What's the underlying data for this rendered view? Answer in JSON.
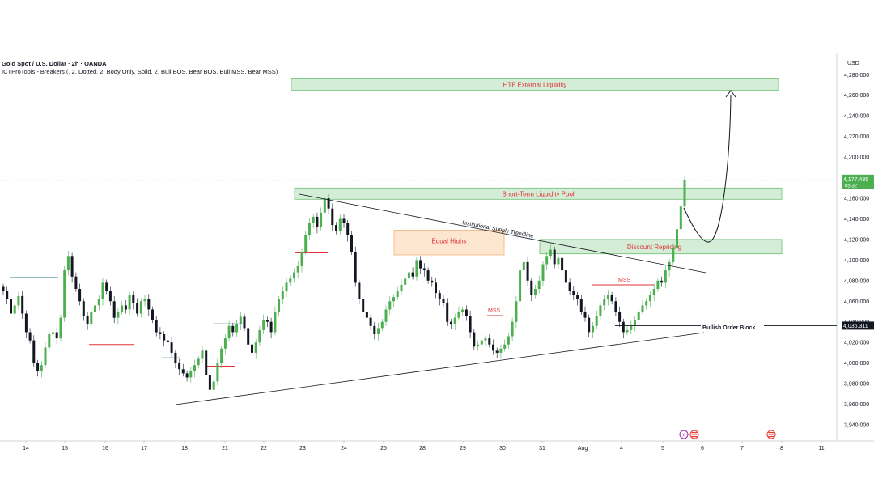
{
  "header": {
    "title": "Gold Spot / U.S. Dollar · 2h · OANDA",
    "indicator": "ICTProTools - Breakers (, 2, Dotted, 2, Body Only, Solid, 2, Bull BOS, Bear BOS, Bull MSS, Bear MSS)"
  },
  "colors": {
    "bull": "#4caf50",
    "bear": "#131722",
    "zone_fill": "#d4edd6",
    "zone_border": "#6fbf73",
    "zone_label": "#e0333a",
    "equal_highs_fill": "#fde6cf",
    "equal_highs_border": "#f0b27a",
    "price_badge": "#4caf50"
  },
  "chart_data": {
    "type": "candlestick",
    "symbol": "Gold Spot / U.S. Dollar",
    "timeframe": "2h",
    "currency_label": "USD",
    "ylim": [
      3930,
      4295
    ],
    "y_ticks": [
      3940,
      3960,
      3980,
      4000,
      4020,
      4040,
      4060,
      4080,
      4100,
      4120,
      4140,
      4160,
      4200,
      4220,
      4240,
      4260,
      4280
    ],
    "y_tick_labels": [
      "3,940.000",
      "3,960.000",
      "3,980.000",
      "4,000.000",
      "4,020.000",
      "4,040.000",
      "4,060.000",
      "4,080.000",
      "4,100.000",
      "4,120.000",
      "4,140.000",
      "4,160.000",
      "4,200.000",
      "4,220.000",
      "4,240.000",
      "4,260.000",
      "4,280.000"
    ],
    "x_tick_labels": [
      "14",
      "15",
      "16",
      "17",
      "18",
      "21",
      "22",
      "23",
      "24",
      "25",
      "28",
      "29",
      "30",
      "31",
      "Aug",
      "4",
      "5",
      "6",
      "7",
      "8",
      "11"
    ],
    "current_price": "4,177.435",
    "countdown": "05:32",
    "marked_price": "4,036.311",
    "closes": [
      4070,
      4062,
      4048,
      4056,
      4065,
      4048,
      4030,
      4022,
      4000,
      3992,
      3998,
      4015,
      4028,
      4030,
      4024,
      4044,
      4090,
      4104,
      4084,
      4072,
      4060,
      4046,
      4038,
      4050,
      4056,
      4062,
      4078,
      4070,
      4060,
      4044,
      4050,
      4056,
      4052,
      4066,
      4058,
      4048,
      4060,
      4062,
      4052,
      4042,
      4030,
      4028,
      4022,
      4020,
      4010,
      4000,
      3994,
      3990,
      3986,
      3992,
      3998,
      4004,
      4012,
      3988,
      3974,
      3982,
      4000,
      4014,
      4024,
      4036,
      4030,
      4038,
      4045,
      4034,
      4018,
      4010,
      4020,
      4032,
      4042,
      4040,
      4030,
      4050,
      4062,
      4070,
      4078,
      4082,
      4088,
      4094,
      4108,
      4124,
      4136,
      4142,
      4132,
      4146,
      4160,
      4150,
      4134,
      4128,
      4140,
      4136,
      4124,
      4108,
      4078,
      4062,
      4050,
      4044,
      4036,
      4028,
      4034,
      4040,
      4052,
      4060,
      4064,
      4070,
      4076,
      4082,
      4088,
      4084,
      4100,
      4092,
      4090,
      4080,
      4078,
      4068,
      4062,
      4058,
      4040,
      4038,
      4044,
      4050,
      4052,
      4046,
      4030,
      4016,
      4018,
      4022,
      4024,
      4018,
      4012,
      4010,
      4014,
      4018,
      4026,
      4040,
      4060,
      4090,
      4098,
      4080,
      4066,
      4072,
      4080,
      4096,
      4104,
      4110,
      4096,
      4102,
      4090,
      4078,
      4070,
      4066,
      4062,
      4050,
      4044,
      4030,
      4036,
      4046,
      4056,
      4062,
      4066,
      4060,
      4050,
      4040,
      4030,
      4032,
      4036,
      4042,
      4050,
      4056,
      4060,
      4066,
      4072,
      4080,
      4078,
      4090,
      4098,
      4112,
      4130,
      4152,
      4177.435
    ],
    "zones": [
      {
        "label": "HTF External Liquidity",
        "top": 4276,
        "bottom": 4265
      },
      {
        "label": "Short-Term Liquidity Pool",
        "top": 4170,
        "bottom": 4159
      },
      {
        "label": "Equal Highs",
        "top": 4129,
        "bottom": 4105
      },
      {
        "label": "Discount Repricing",
        "top": 4120,
        "bottom": 4106
      }
    ],
    "annotations": [
      "Institutional Supply Trendline",
      "MSS",
      "MSS",
      "Bullish Order Block"
    ]
  }
}
